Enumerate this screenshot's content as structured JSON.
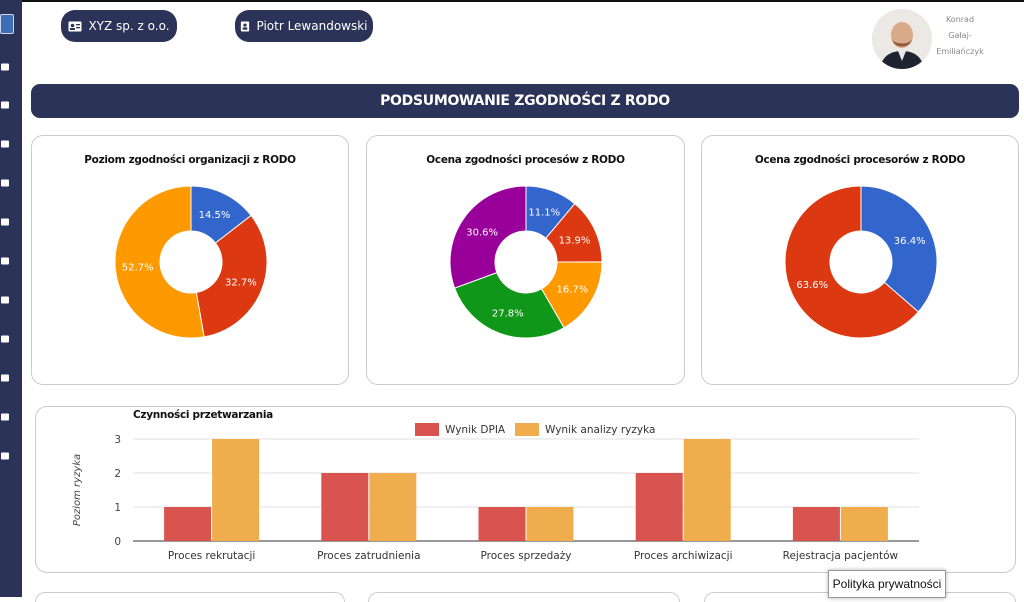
{
  "header": {
    "company_label": "XYZ sp. z o.o.",
    "person_label": "Piotr Lewandowski",
    "user_name_lines": [
      "Konrad",
      "Gałaj-",
      "Emiliańczyk"
    ]
  },
  "banner": {
    "title": "PODSUMOWANIE ZGODNOŚCI Z RODO"
  },
  "colors": {
    "navy": "#2b3358",
    "blue": "#3366cc",
    "red": "#dc3912",
    "orange": "#ff9900",
    "green": "#109618",
    "purple": "#990099",
    "dpia": "#d9534f",
    "risk": "#f0ad4e"
  },
  "sidebar_icons": [
    "home-icon",
    "edit-icon",
    "share-icon",
    "scissors-icon",
    "id-card-icon",
    "box-icon",
    "list-icon",
    "laptop-icon",
    "building-icon",
    "newspaper-icon",
    "pencil-icon"
  ],
  "footer": {
    "privacy_label": "Polityka prywatności"
  },
  "chart_data": [
    {
      "type": "pie",
      "title": "Poziom zgodności organizacji z RODO",
      "slices": [
        {
          "label": "14.5%",
          "value": 14.5,
          "color": "#3366cc"
        },
        {
          "label": "32.7%",
          "value": 32.7,
          "color": "#dc3912"
        },
        {
          "label": "52.7%",
          "value": 52.7,
          "color": "#ff9900"
        }
      ]
    },
    {
      "type": "pie",
      "title": "Ocena zgodności procesów z RODO",
      "slices": [
        {
          "label": "11.1%",
          "value": 11.1,
          "color": "#3366cc"
        },
        {
          "label": "13.9%",
          "value": 13.9,
          "color": "#dc3912"
        },
        {
          "label": "16.7%",
          "value": 16.7,
          "color": "#ff9900"
        },
        {
          "label": "27.8%",
          "value": 27.8,
          "color": "#109618"
        },
        {
          "label": "30.6%",
          "value": 30.6,
          "color": "#990099"
        }
      ]
    },
    {
      "type": "pie",
      "title": "Ocena zgodności procesorów z RODO",
      "slices": [
        {
          "label": "36.4%",
          "value": 36.4,
          "color": "#3366cc"
        },
        {
          "label": "63.6%",
          "value": 63.6,
          "color": "#dc3912"
        }
      ]
    },
    {
      "type": "bar",
      "title": "Czynności przetwarzania",
      "ylabel": "Poziom ryzyka",
      "ylim": [
        0,
        3
      ],
      "yticks": [
        "0",
        "1",
        "2",
        "3"
      ],
      "categories": [
        "Proces rekrutacji",
        "Proces zatrudnienia",
        "Proces sprzedaży",
        "Proces archiwizacji",
        "Rejestracja pacjentów"
      ],
      "series": [
        {
          "name": "Wynik DPIA",
          "values": [
            1,
            2,
            1,
            2,
            1
          ],
          "color": "#d9534f"
        },
        {
          "name": "Wynik analizy ryzyka",
          "values": [
            3,
            2,
            1,
            3,
            1
          ],
          "color": "#f0ad4e"
        }
      ]
    }
  ]
}
